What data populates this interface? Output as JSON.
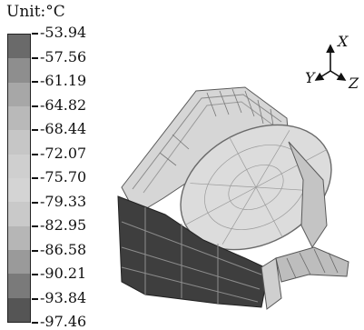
{
  "colorbar": {
    "unit_label": "Unit:°C",
    "tick_values": [
      "-53.94",
      "-57.56",
      "-61.19",
      "-64.82",
      "-68.44",
      "-72.07",
      "-75.70",
      "-79.33",
      "-82.95",
      "-86.58",
      "-90.21",
      "-93.84",
      "-97.46"
    ],
    "band_colors": [
      "#6a6a6a",
      "#8e8e8e",
      "#a7a7a7",
      "#b9b9b9",
      "#c6c6c6",
      "#cfcfcf",
      "#d4d4d4",
      "#c9c9c9",
      "#b6b6b6",
      "#9a9a9a",
      "#7a7a7a",
      "#555555"
    ]
  },
  "axes": {
    "x_label": "X",
    "y_label": "Y",
    "z_label": "Z"
  }
}
